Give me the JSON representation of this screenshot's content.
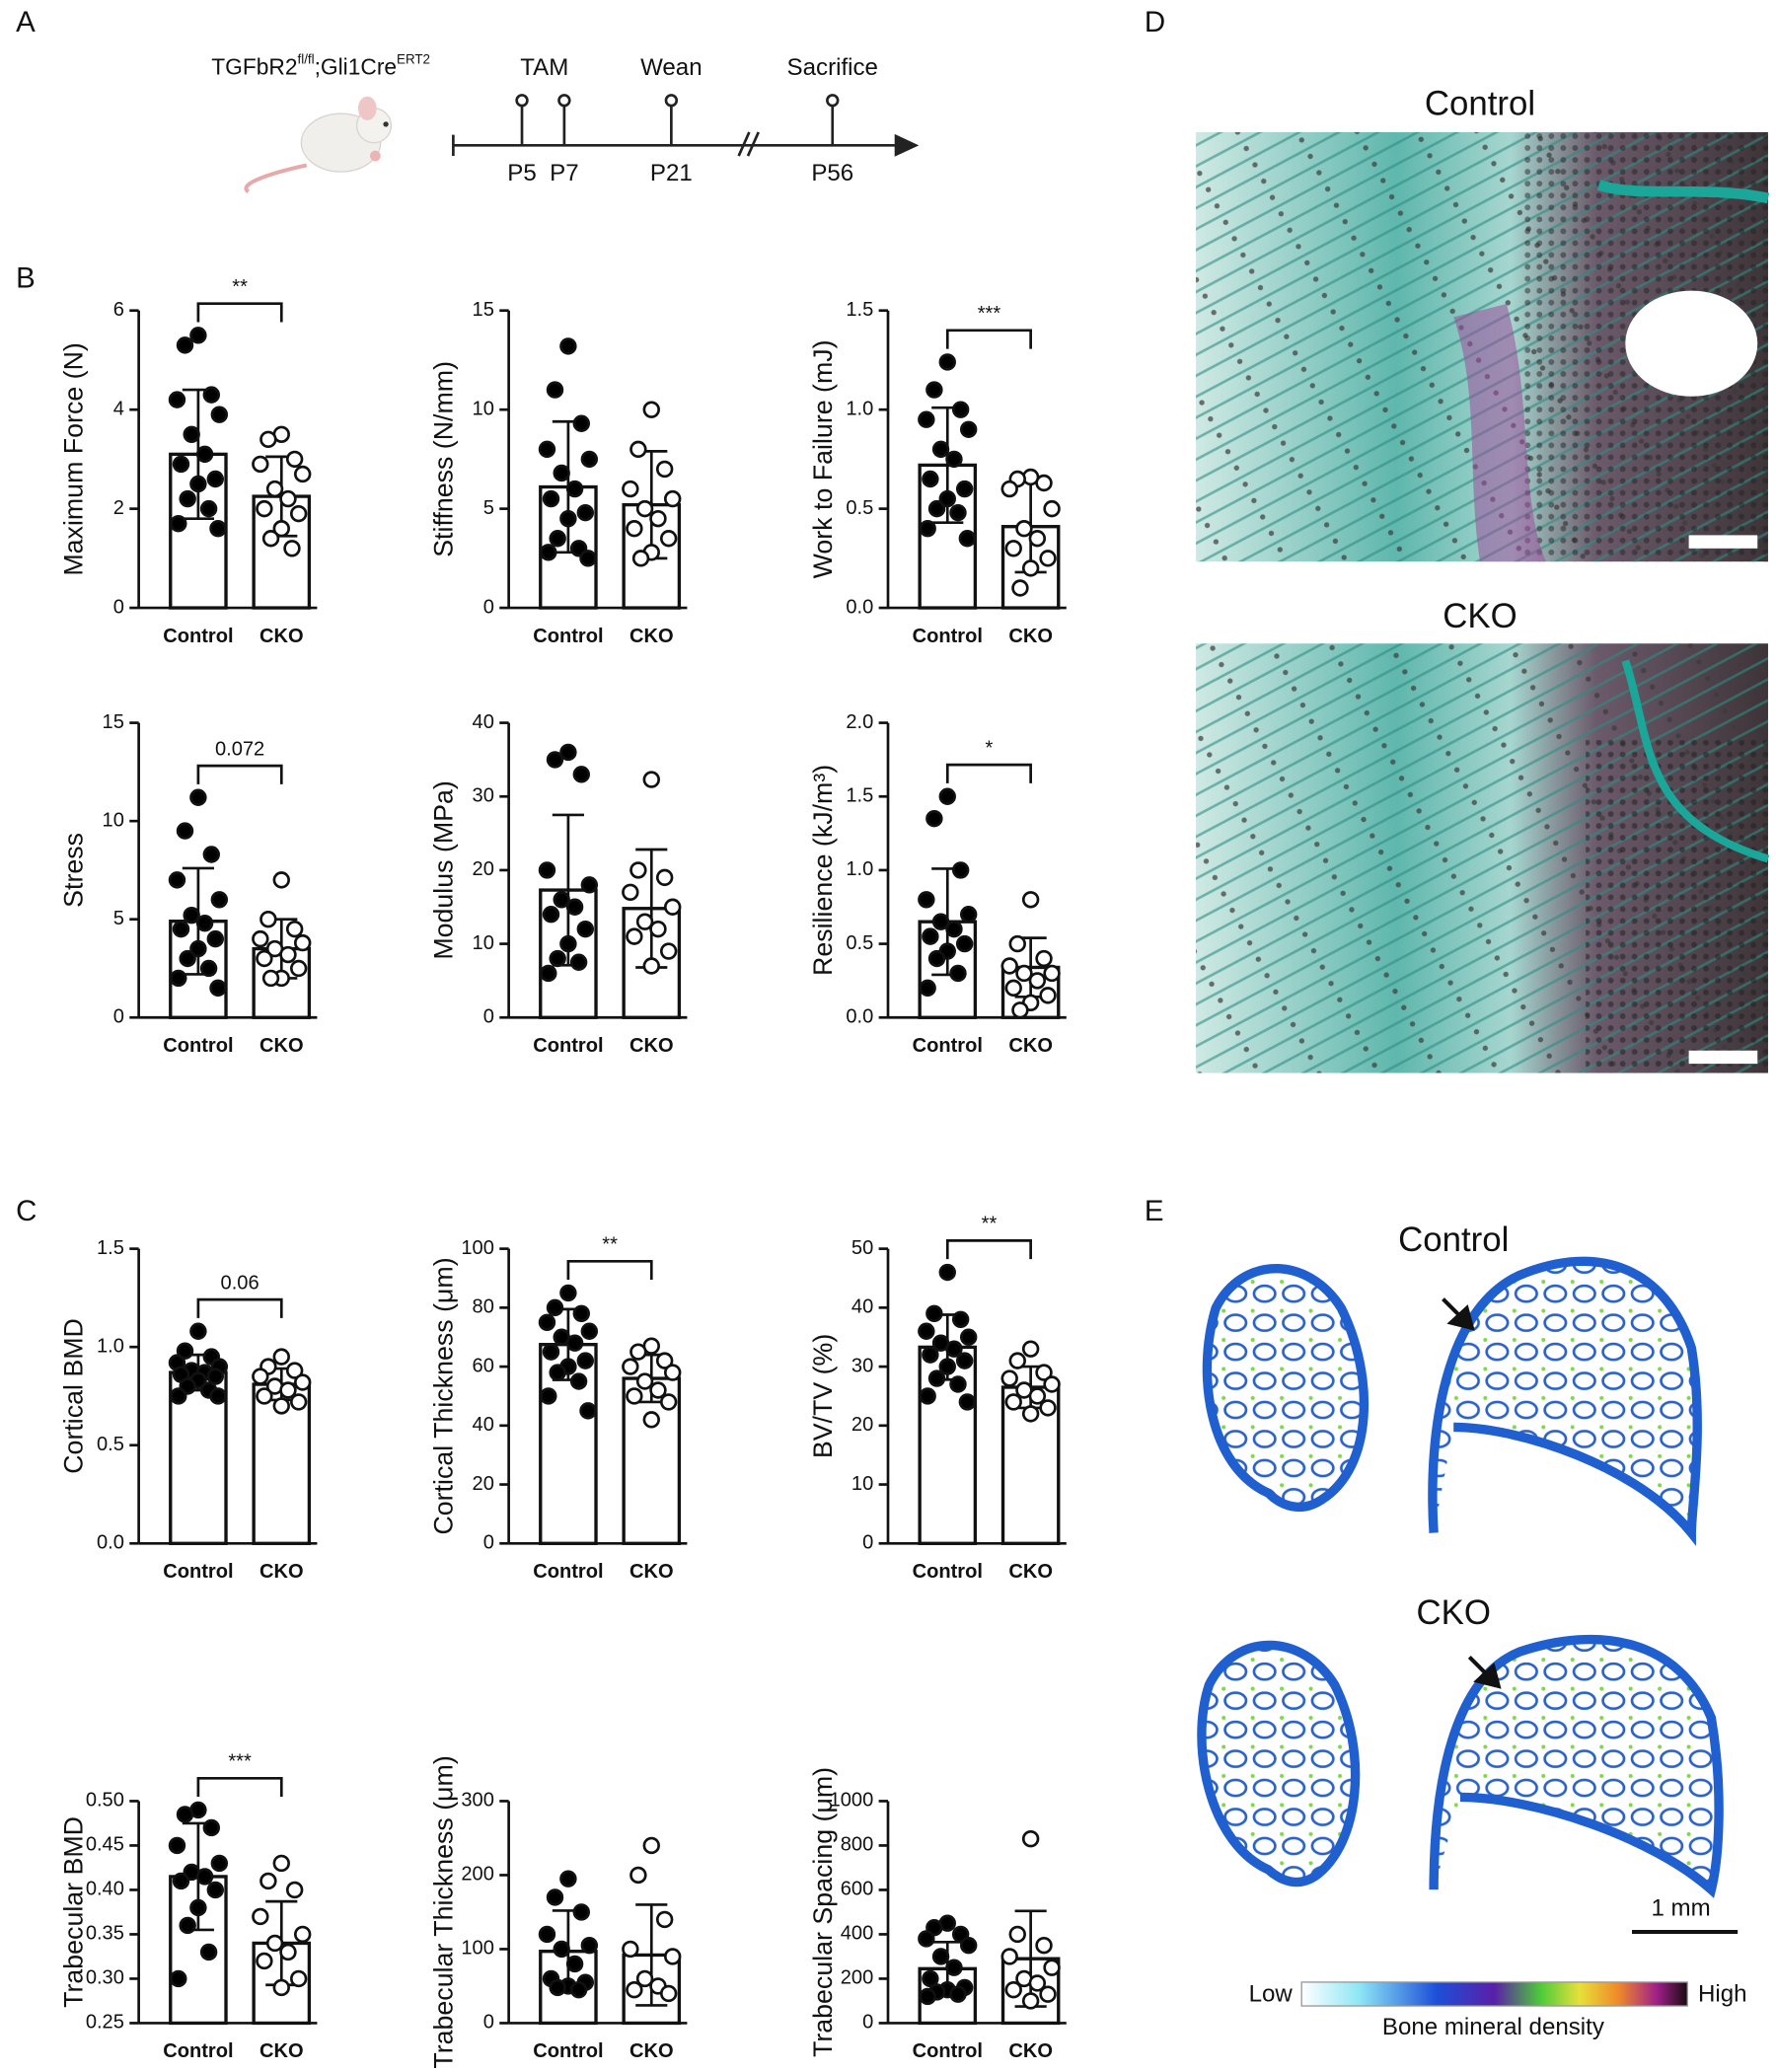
{
  "panel_labels": [
    "A",
    "B",
    "C",
    "D",
    "E"
  ],
  "timeline": {
    "genotype": [
      "TGFbR2",
      "fl/fl",
      ";Gli1Cre",
      "ERT2"
    ],
    "events": [
      "TAM",
      "Wean",
      "Sacrifice"
    ],
    "days": [
      "P5",
      "P7",
      "P21",
      "P56"
    ]
  },
  "chart_data": [
    {
      "type": "bar",
      "ylabel": "Maximum Force (N)",
      "categories": [
        "Control",
        "CKO"
      ],
      "values": [
        3.1,
        2.25
      ],
      "errors": [
        1.3,
        0.8
      ],
      "points": [
        [
          5.5,
          5.3,
          4.3,
          4.2,
          3.9,
          3.5,
          3.1,
          2.9,
          2.6,
          2.5,
          2.2,
          2.0,
          1.7,
          1.6
        ],
        [
          3.5,
          3.4,
          3.0,
          2.9,
          2.7,
          2.4,
          2.2,
          2.0,
          1.9,
          1.6,
          1.4,
          1.2
        ]
      ],
      "ylim": [
        0,
        6
      ],
      "yticks": [
        0,
        2,
        4,
        6
      ],
      "annotation": "**",
      "color": "#ffffff",
      "marker_fills": [
        "#000000",
        "#ffffff"
      ]
    },
    {
      "type": "bar",
      "ylabel": "Stiffness (N/mm)",
      "categories": [
        "Control",
        "CKO"
      ],
      "values": [
        6.1,
        5.2
      ],
      "errors": [
        3.3,
        2.7
      ],
      "points": [
        [
          13.2,
          11.0,
          9.3,
          8.0,
          7.5,
          6.8,
          6.0,
          5.5,
          4.8,
          4.5,
          3.5,
          3.0,
          2.8,
          2.5
        ],
        [
          10.0,
          8.0,
          7.0,
          6.0,
          5.5,
          5.0,
          4.5,
          4.0,
          3.5,
          2.8,
          2.5
        ]
      ],
      "ylim": [
        0,
        15
      ],
      "yticks": [
        0,
        5,
        10,
        15
      ],
      "color": "#ffffff",
      "marker_fills": [
        "#000000",
        "#ffffff"
      ]
    },
    {
      "type": "bar",
      "ylabel": "Work to Failure  (mJ)",
      "categories": [
        "Control",
        "CKO"
      ],
      "values": [
        0.72,
        0.41
      ],
      "errors": [
        0.29,
        0.23
      ],
      "points": [
        [
          1.24,
          1.1,
          1.0,
          0.95,
          0.9,
          0.8,
          0.75,
          0.65,
          0.6,
          0.55,
          0.5,
          0.48,
          0.4,
          0.35
        ],
        [
          0.66,
          0.65,
          0.63,
          0.6,
          0.5,
          0.4,
          0.35,
          0.3,
          0.25,
          0.2,
          0.1
        ]
      ],
      "ylim": [
        0,
        1.5
      ],
      "yticks": [
        {
          "value": 0,
          "label": "0.0"
        },
        0.5,
        {
          "value": 1,
          "label": "1.0"
        },
        1.5
      ],
      "annotation": "***",
      "color": "#ffffff",
      "marker_fills": [
        "#000000",
        "#ffffff"
      ]
    },
    {
      "type": "bar",
      "ylabel": "Stress",
      "categories": [
        "Control",
        "CKO"
      ],
      "values": [
        4.9,
        3.5
      ],
      "errors": [
        2.7,
        1.5
      ],
      "points": [
        [
          11.2,
          9.5,
          8.3,
          7.0,
          6.0,
          5.2,
          4.8,
          4.5,
          4.0,
          3.5,
          3.0,
          2.5,
          2.0,
          1.5
        ],
        [
          7.0,
          5.0,
          4.5,
          4.0,
          3.8,
          3.5,
          3.2,
          3.0,
          2.5,
          2.0,
          2.0
        ]
      ],
      "ylim": [
        0,
        15
      ],
      "yticks": [
        0,
        5,
        10,
        15
      ],
      "annotation": "0.072",
      "color": "#ffffff",
      "marker_fills": [
        "#000000",
        "#ffffff"
      ]
    },
    {
      "type": "bar",
      "ylabel": "Modulus (MPa)",
      "categories": [
        "Control",
        "CKO"
      ],
      "values": [
        17.3,
        14.8
      ],
      "errors": [
        10.2,
        8.0
      ],
      "points": [
        [
          36,
          35,
          33,
          20,
          18,
          16,
          15,
          14,
          12,
          10,
          8,
          7.5,
          6
        ],
        [
          32.3,
          20,
          19,
          17,
          15,
          13,
          12,
          11,
          9,
          7
        ]
      ],
      "ylim": [
        0,
        40
      ],
      "yticks": [
        0,
        10,
        20,
        30,
        40
      ],
      "color": "#ffffff",
      "marker_fills": [
        "#000000",
        "#ffffff"
      ]
    },
    {
      "type": "bar",
      "ylabel": "Resilience (kJ/m³)",
      "categories": [
        "Control",
        "CKO"
      ],
      "values": [
        0.65,
        0.34
      ],
      "errors": [
        0.36,
        0.2
      ],
      "points": [
        [
          1.5,
          1.35,
          1.0,
          0.8,
          0.7,
          0.65,
          0.6,
          0.55,
          0.5,
          0.45,
          0.4,
          0.3,
          0.2
        ],
        [
          0.8,
          0.5,
          0.4,
          0.35,
          0.3,
          0.3,
          0.25,
          0.2,
          0.15,
          0.1,
          0.05
        ]
      ],
      "ylim": [
        0,
        2
      ],
      "yticks": [
        {
          "value": 0,
          "label": "0.0"
        },
        0.5,
        {
          "value": 1,
          "label": "1.0"
        },
        1.5,
        {
          "value": 2,
          "label": "2.0"
        }
      ],
      "annotation": "*",
      "color": "#ffffff",
      "marker_fills": [
        "#000000",
        "#ffffff"
      ]
    },
    {
      "type": "bar",
      "ylabel": "Cortical BMD",
      "categories": [
        "Control",
        "CKO"
      ],
      "values": [
        0.87,
        0.81
      ],
      "errors": [
        0.09,
        0.08
      ],
      "points": [
        [
          1.08,
          0.98,
          0.95,
          0.92,
          0.9,
          0.88,
          0.87,
          0.86,
          0.85,
          0.83,
          0.8,
          0.78,
          0.75,
          0.75
        ],
        [
          0.95,
          0.9,
          0.88,
          0.85,
          0.82,
          0.8,
          0.78,
          0.75,
          0.72,
          0.7
        ]
      ],
      "ylim": [
        0,
        1.5
      ],
      "yticks": [
        {
          "value": 0,
          "label": "0.0"
        },
        0.5,
        {
          "value": 1,
          "label": "1.0"
        },
        1.5
      ],
      "annotation": "0.06",
      "color": "#ffffff",
      "marker_fills": [
        "#000000",
        "#ffffff"
      ]
    },
    {
      "type": "bar",
      "ylabel": "Cortical Thickness (μm)",
      "categories": [
        "Control",
        "CKO"
      ],
      "values": [
        67.5,
        56
      ],
      "errors": [
        12,
        8
      ],
      "points": [
        [
          85,
          80,
          78,
          75,
          72,
          70,
          68,
          65,
          62,
          60,
          58,
          55,
          50,
          45
        ],
        [
          67,
          65,
          62,
          60,
          58,
          55,
          52,
          50,
          48,
          42
        ]
      ],
      "ylim": [
        0,
        100
      ],
      "yticks": [
        0,
        20,
        40,
        60,
        80,
        100
      ],
      "annotation": "**",
      "color": "#ffffff",
      "marker_fills": [
        "#000000",
        "#ffffff"
      ]
    },
    {
      "type": "bar",
      "ylabel": "BV/TV (%)",
      "categories": [
        "Control",
        "CKO"
      ],
      "values": [
        33.3,
        26.5
      ],
      "errors": [
        5.5,
        3.5
      ],
      "points": [
        [
          46,
          39,
          38,
          36,
          35,
          34,
          33,
          32,
          31,
          30,
          28,
          27,
          25,
          24
        ],
        [
          33,
          31,
          29,
          28,
          27,
          26,
          25,
          24,
          23,
          22
        ]
      ],
      "ylim": [
        0,
        50
      ],
      "yticks": [
        0,
        10,
        20,
        30,
        40,
        50
      ],
      "annotation": "**",
      "color": "#ffffff",
      "marker_fills": [
        "#000000",
        "#ffffff"
      ]
    },
    {
      "type": "bar",
      "ylabel": "Trabecular BMD",
      "categories": [
        "Control",
        "CKO"
      ],
      "values": [
        0.415,
        0.34
      ],
      "errors": [
        0.06,
        0.047
      ],
      "points": [
        [
          0.49,
          0.485,
          0.47,
          0.45,
          0.43,
          0.42,
          0.415,
          0.41,
          0.4,
          0.38,
          0.36,
          0.33,
          0.3
        ],
        [
          0.43,
          0.41,
          0.4,
          0.37,
          0.35,
          0.34,
          0.33,
          0.32,
          0.3,
          0.29
        ]
      ],
      "ylim": [
        0.25,
        0.5
      ],
      "yticks": [
        0.25,
        {
          "value": 0.3,
          "label": "0.30"
        },
        0.35,
        {
          "value": 0.4,
          "label": "0.40"
        },
        0.45,
        {
          "value": 0.5,
          "label": "0.50"
        }
      ],
      "annotation": "***",
      "color": "#ffffff",
      "marker_fills": [
        "#000000",
        "#ffffff"
      ]
    },
    {
      "type": "bar",
      "ylabel": "Trabecular Thickness (μm)",
      "categories": [
        "Control",
        "CKO"
      ],
      "values": [
        97,
        92
      ],
      "errors": [
        55,
        68
      ],
      "points": [
        [
          195,
          170,
          150,
          120,
          105,
          100,
          80,
          60,
          55,
          50,
          48,
          45
        ],
        [
          240,
          200,
          140,
          100,
          90,
          60,
          50,
          45,
          40
        ]
      ],
      "ylim": [
        0,
        300
      ],
      "yticks": [
        0,
        100,
        200,
        300
      ],
      "color": "#ffffff",
      "marker_fills": [
        "#000000",
        "#ffffff"
      ]
    },
    {
      "type": "bar",
      "ylabel": "Trabecular Spacing (μm)",
      "categories": [
        "Control",
        "CKO"
      ],
      "values": [
        245,
        290
      ],
      "errors": [
        120,
        215
      ],
      "points": [
        [
          450,
          430,
          400,
          380,
          350,
          300,
          250,
          200,
          160,
          150,
          140,
          130,
          120
        ],
        [
          830,
          400,
          350,
          300,
          250,
          200,
          180,
          150,
          130,
          100
        ]
      ],
      "ylim": [
        0,
        1000
      ],
      "yticks": [
        0,
        200,
        400,
        600,
        800,
        1000
      ],
      "color": "#ffffff",
      "marker_fills": [
        "#000000",
        "#ffffff"
      ]
    }
  ],
  "histology": {
    "groups": [
      "Control",
      "CKO"
    ]
  },
  "microct": {
    "groups": [
      "Control",
      "CKO"
    ],
    "scale_bar": "1 mm",
    "colorbar": {
      "low": "Low",
      "high": "High",
      "label": "Bone mineral density"
    }
  }
}
